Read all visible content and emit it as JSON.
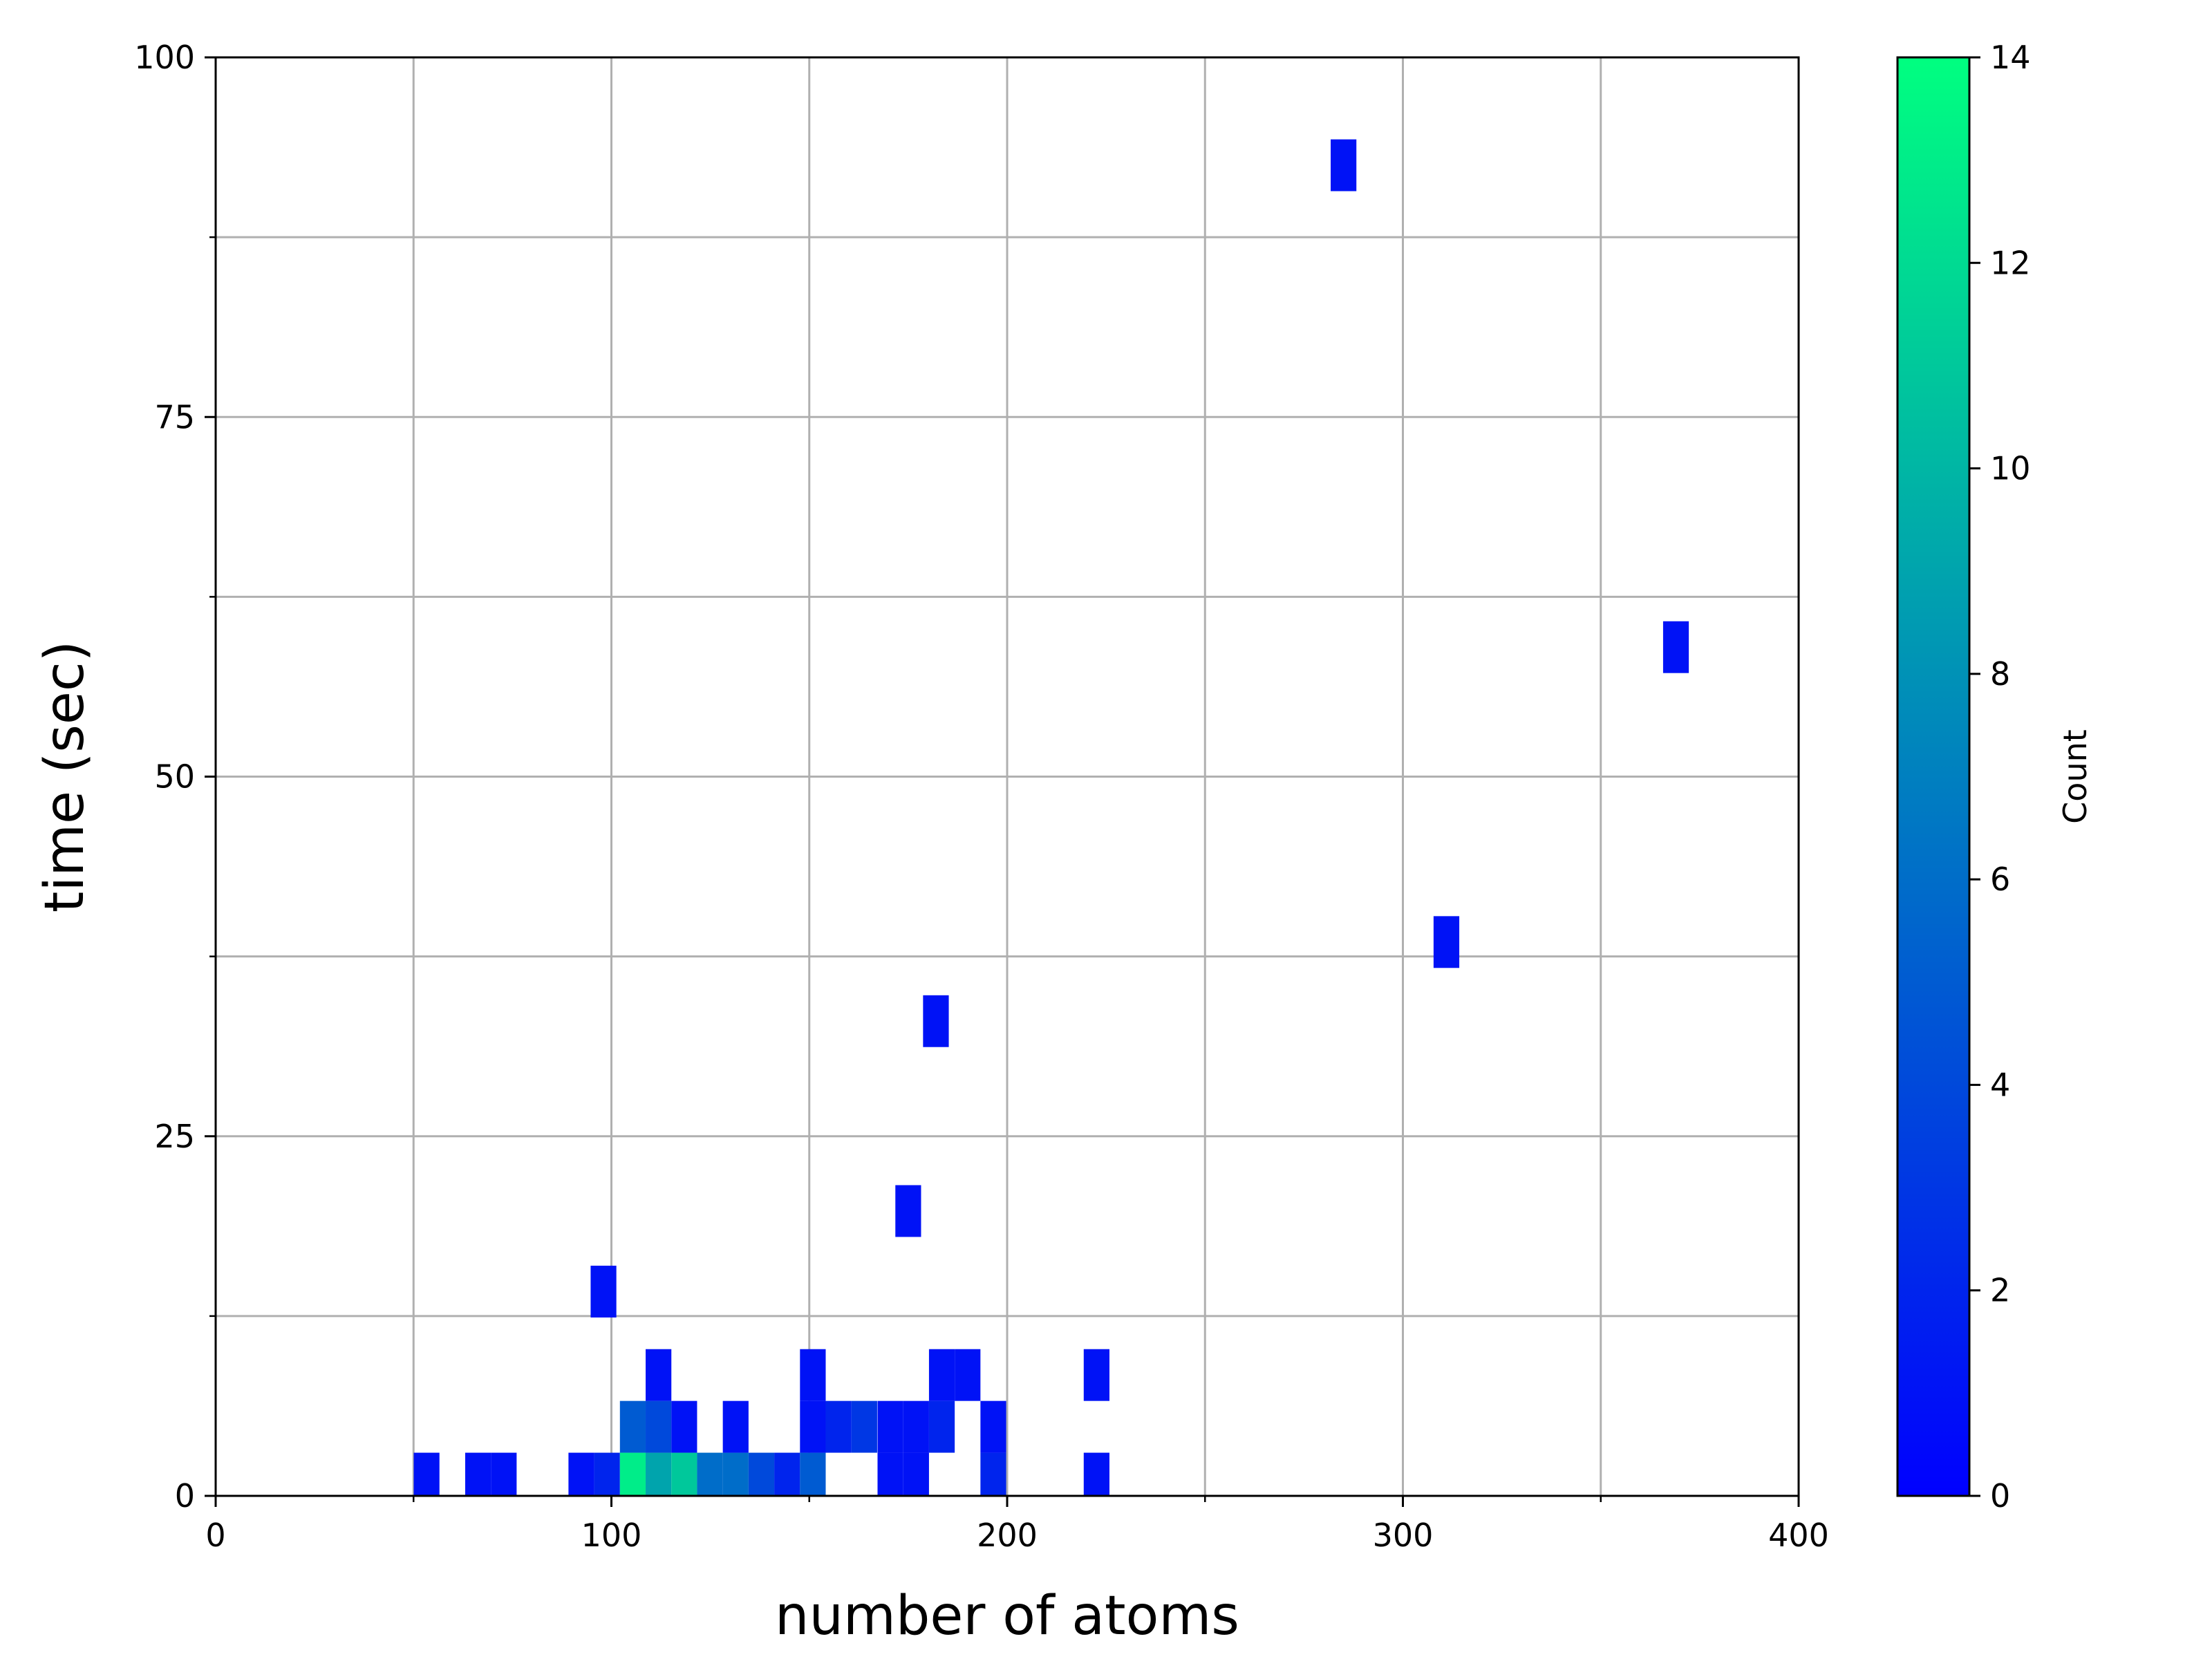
{
  "chart_data": {
    "type": "heatmap",
    "subtype": "2d-histogram",
    "title": "",
    "xlabel": "number of atoms",
    "ylabel": "time (sec)",
    "xlim": [
      0,
      400
    ],
    "ylim": [
      0,
      100
    ],
    "x_ticks": [
      0,
      100,
      200,
      300,
      400
    ],
    "x_tick_labels": [
      "0",
      "100",
      "200",
      "300",
      "400"
    ],
    "x_minor_ticks": [
      50,
      150,
      250,
      350
    ],
    "y_ticks": [
      0,
      25,
      50,
      75,
      100
    ],
    "y_tick_labels": [
      "0",
      "25",
      "50",
      "75",
      "100"
    ],
    "y_minor_ticks": [
      12.5,
      37.5,
      62.5,
      87.5
    ],
    "grid": true,
    "colormap": "winter",
    "colorbar": {
      "label": "Count",
      "range": [
        0,
        14
      ],
      "ticks": [
        0,
        2,
        4,
        6,
        8,
        10,
        12,
        14
      ],
      "tick_labels": [
        "0",
        "2",
        "4",
        "6",
        "8",
        "10",
        "12",
        "14"
      ],
      "color_low": "#0000ff",
      "color_high": "#00ff80"
    },
    "bin_size": {
      "x": 6.5,
      "y": 3.6
    },
    "bins": [
      {
        "x": 53.3,
        "y": 1.2,
        "count": 1
      },
      {
        "x": 66.3,
        "y": 1.2,
        "count": 1
      },
      {
        "x": 72.8,
        "y": 1.2,
        "count": 1
      },
      {
        "x": 92.4,
        "y": 1.2,
        "count": 1
      },
      {
        "x": 98.9,
        "y": 1.2,
        "count": 2
      },
      {
        "x": 105.4,
        "y": 1.2,
        "count": 13
      },
      {
        "x": 111.9,
        "y": 1.2,
        "count": 9
      },
      {
        "x": 118.4,
        "y": 1.2,
        "count": 11
      },
      {
        "x": 124.9,
        "y": 1.2,
        "count": 6
      },
      {
        "x": 131.4,
        "y": 1.2,
        "count": 6
      },
      {
        "x": 137.9,
        "y": 1.2,
        "count": 4
      },
      {
        "x": 144.4,
        "y": 1.2,
        "count": 2
      },
      {
        "x": 150.9,
        "y": 1.2,
        "count": 5
      },
      {
        "x": 170.5,
        "y": 1.2,
        "count": 1
      },
      {
        "x": 177.0,
        "y": 1.2,
        "count": 1
      },
      {
        "x": 196.5,
        "y": 1.2,
        "count": 2
      },
      {
        "x": 222.6,
        "y": 1.2,
        "count": 1
      },
      {
        "x": 105.4,
        "y": 4.8,
        "count": 5
      },
      {
        "x": 111.9,
        "y": 4.8,
        "count": 4
      },
      {
        "x": 118.4,
        "y": 4.8,
        "count": 1
      },
      {
        "x": 131.4,
        "y": 4.8,
        "count": 1
      },
      {
        "x": 150.9,
        "y": 4.8,
        "count": 1
      },
      {
        "x": 157.4,
        "y": 4.8,
        "count": 2
      },
      {
        "x": 163.9,
        "y": 4.8,
        "count": 3
      },
      {
        "x": 170.5,
        "y": 4.8,
        "count": 1
      },
      {
        "x": 177.0,
        "y": 4.8,
        "count": 1
      },
      {
        "x": 183.5,
        "y": 4.8,
        "count": 2
      },
      {
        "x": 196.5,
        "y": 4.8,
        "count": 1
      },
      {
        "x": 111.9,
        "y": 8.4,
        "count": 1
      },
      {
        "x": 150.9,
        "y": 8.4,
        "count": 1
      },
      {
        "x": 183.5,
        "y": 8.4,
        "count": 1
      },
      {
        "x": 190.0,
        "y": 8.4,
        "count": 1
      },
      {
        "x": 222.6,
        "y": 8.4,
        "count": 1
      },
      {
        "x": 98.0,
        "y": 14.2,
        "count": 1
      },
      {
        "x": 175.0,
        "y": 19.8,
        "count": 1
      },
      {
        "x": 182.0,
        "y": 33.0,
        "count": 1
      },
      {
        "x": 285.0,
        "y": 92.5,
        "count": 1
      },
      {
        "x": 311.0,
        "y": 38.5,
        "count": 1
      },
      {
        "x": 369.0,
        "y": 59.0,
        "count": 1
      }
    ]
  }
}
